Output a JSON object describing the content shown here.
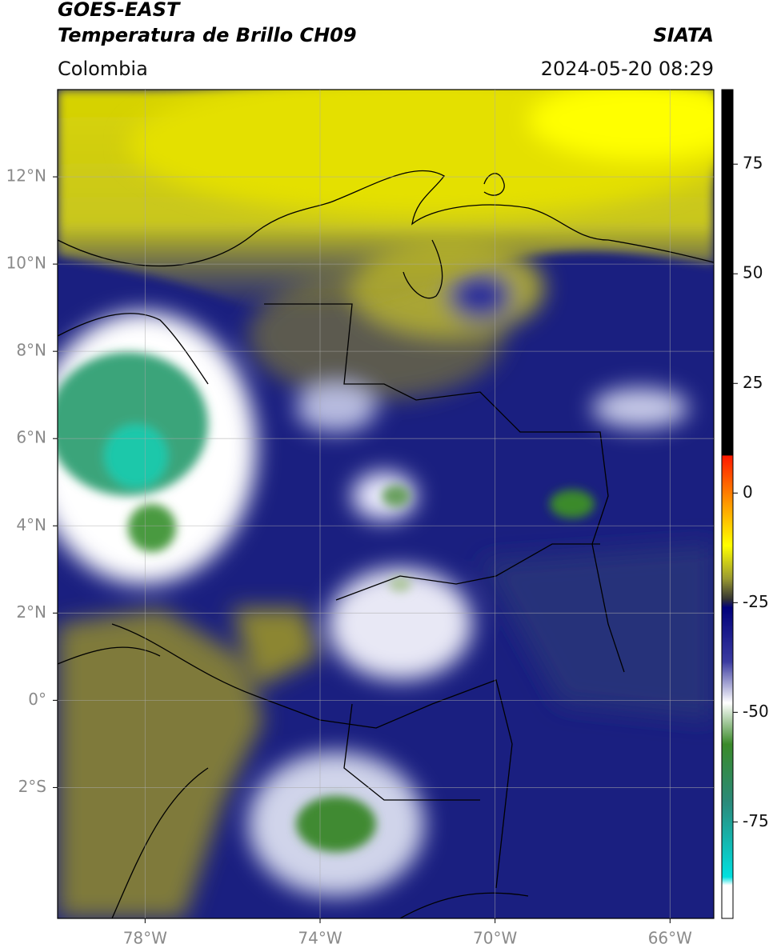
{
  "header": {
    "title": "GOES-EAST",
    "subtitle": "Temperatura de Brillo CH09",
    "source": "SIATA",
    "region": "Colombia",
    "datetime": "2024-05-20 08:29"
  },
  "map": {
    "xlim": [
      -80,
      -65
    ],
    "ylim": [
      -5,
      14
    ],
    "xticks": [
      {
        "value": -78,
        "label": "78°W"
      },
      {
        "value": -74,
        "label": "74°W"
      },
      {
        "value": -70,
        "label": "70°W"
      },
      {
        "value": -66,
        "label": "66°W"
      }
    ],
    "yticks": [
      {
        "value": 12,
        "label": "12°N"
      },
      {
        "value": 10,
        "label": "10°N"
      },
      {
        "value": 8,
        "label": "8°N"
      },
      {
        "value": 6,
        "label": "6°N"
      },
      {
        "value": 4,
        "label": "4°N"
      },
      {
        "value": 2,
        "label": "2°N"
      },
      {
        "value": 0,
        "label": "0°"
      },
      {
        "value": -2,
        "label": "2°S"
      }
    ],
    "grid": true
  },
  "colorbar": {
    "lim": [
      -97,
      92
    ],
    "ticks": [
      75,
      50,
      25,
      0,
      -25,
      -50,
      -75
    ]
  }
}
